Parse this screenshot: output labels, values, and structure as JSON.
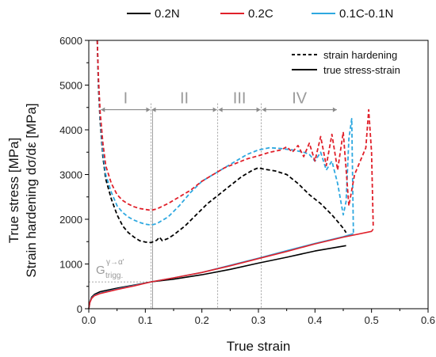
{
  "chart_data": {
    "type": "line",
    "xlabel": "True strain",
    "ylabel_lines": [
      "True stress [MPa]",
      "Strain hardening dσ/dε [MPa]"
    ],
    "xlim": [
      0.0,
      0.6
    ],
    "ylim": [
      0,
      6000
    ],
    "x_ticks": [
      0.0,
      0.1,
      0.2,
      0.3,
      0.4,
      0.5,
      0.6
    ],
    "y_ticks": [
      0,
      1000,
      2000,
      3000,
      4000,
      5000,
      6000
    ],
    "x_tick_labels": [
      "0.0",
      "0.1",
      "0.2",
      "0.3",
      "0.4",
      "0.5",
      "0.6"
    ],
    "y_tick_labels": [
      "0",
      "1000",
      "2000",
      "3000",
      "4000",
      "5000",
      "6000"
    ],
    "grid": false,
    "legend_top": {
      "placement": "top",
      "entries": [
        {
          "name": "0.2N",
          "color": "#000000"
        },
        {
          "name": "0.2C",
          "color": "#e0202a"
        },
        {
          "name": "0.1C-0.1N",
          "color": "#2ea8e0"
        }
      ]
    },
    "legend_style": {
      "placement": "top-right",
      "entries": [
        {
          "name": "strain hardening",
          "style": "dashed"
        },
        {
          "name": "true stress-strain",
          "style": "solid"
        }
      ]
    },
    "regions": {
      "labels": [
        "I",
        "II",
        "III",
        "IV"
      ],
      "boundaries": [
        0.02,
        0.11,
        0.228,
        0.305,
        0.44
      ],
      "arrow_y": 4450
    },
    "trigger": {
      "label": "G",
      "superscript": "γ→α'",
      "subscript": "trigg.",
      "stress": 600,
      "strain": 0.11
    },
    "series": [
      {
        "name": "0.2N",
        "kind": "true stress-strain",
        "color": "#000000",
        "dashed": false,
        "x": [
          0.0,
          0.002,
          0.005,
          0.01,
          0.02,
          0.05,
          0.08,
          0.11,
          0.15,
          0.2,
          0.25,
          0.3,
          0.35,
          0.4,
          0.45,
          0.455
        ],
        "y": [
          0,
          150,
          260,
          320,
          380,
          460,
          530,
          600,
          660,
          760,
          880,
          1020,
          1150,
          1290,
          1400,
          1410
        ]
      },
      {
        "name": "0.2C",
        "kind": "true stress-strain",
        "color": "#e0202a",
        "dashed": false,
        "x": [
          0.0,
          0.002,
          0.005,
          0.01,
          0.02,
          0.05,
          0.08,
          0.11,
          0.15,
          0.2,
          0.25,
          0.3,
          0.35,
          0.4,
          0.45,
          0.5,
          0.503
        ],
        "y": [
          0,
          140,
          230,
          290,
          340,
          430,
          510,
          600,
          690,
          810,
          960,
          1120,
          1280,
          1450,
          1600,
          1730,
          1780
        ]
      },
      {
        "name": "0.1C-0.1N",
        "kind": "true stress-strain",
        "color": "#2ea8e0",
        "dashed": false,
        "x": [
          0.0,
          0.002,
          0.005,
          0.01,
          0.02,
          0.05,
          0.08,
          0.11,
          0.15,
          0.2,
          0.25,
          0.3,
          0.35,
          0.4,
          0.45,
          0.468
        ],
        "y": [
          0,
          140,
          240,
          300,
          350,
          440,
          520,
          600,
          690,
          810,
          970,
          1130,
          1300,
          1460,
          1610,
          1680
        ]
      },
      {
        "name": "0.2N",
        "kind": "strain hardening",
        "color": "#000000",
        "dashed": true,
        "x": [
          0.015,
          0.017,
          0.02,
          0.025,
          0.03,
          0.04,
          0.05,
          0.06,
          0.07,
          0.08,
          0.09,
          0.1,
          0.11,
          0.12,
          0.125,
          0.13,
          0.14,
          0.15,
          0.17,
          0.19,
          0.21,
          0.23,
          0.25,
          0.27,
          0.29,
          0.3,
          0.31,
          0.33,
          0.35,
          0.37,
          0.39,
          0.41,
          0.43,
          0.44,
          0.45,
          0.455
        ],
        "y": [
          6000,
          5000,
          4200,
          3400,
          2900,
          2450,
          2100,
          1850,
          1700,
          1600,
          1520,
          1490,
          1480,
          1530,
          1600,
          1520,
          1570,
          1650,
          1850,
          2100,
          2350,
          2550,
          2750,
          2950,
          3100,
          3150,
          3120,
          3080,
          3000,
          2800,
          2550,
          2350,
          2100,
          1950,
          1800,
          1700
        ]
      },
      {
        "name": "0.2C",
        "kind": "strain hardening",
        "color": "#e0202a",
        "dashed": true,
        "x": [
          0.015,
          0.017,
          0.02,
          0.025,
          0.03,
          0.04,
          0.05,
          0.06,
          0.07,
          0.08,
          0.09,
          0.1,
          0.11,
          0.12,
          0.14,
          0.16,
          0.18,
          0.2,
          0.22,
          0.24,
          0.26,
          0.28,
          0.3,
          0.32,
          0.34,
          0.35,
          0.36,
          0.37,
          0.38,
          0.39,
          0.4,
          0.41,
          0.42,
          0.43,
          0.44,
          0.45,
          0.46,
          0.47,
          0.48,
          0.49,
          0.495,
          0.5,
          0.503
        ],
        "y": [
          6000,
          5200,
          4400,
          3700,
          3200,
          2800,
          2550,
          2420,
          2340,
          2280,
          2240,
          2220,
          2200,
          2230,
          2350,
          2500,
          2650,
          2850,
          3000,
          3150,
          3250,
          3350,
          3420,
          3500,
          3550,
          3620,
          3500,
          3650,
          3400,
          3700,
          3300,
          3850,
          3200,
          3900,
          3100,
          3950,
          2300,
          3000,
          3300,
          3600,
          4450,
          3500,
          1850
        ]
      },
      {
        "name": "0.1C-0.1N",
        "kind": "strain hardening",
        "color": "#2ea8e0",
        "dashed": true,
        "x": [
          0.015,
          0.017,
          0.02,
          0.025,
          0.03,
          0.04,
          0.05,
          0.06,
          0.07,
          0.08,
          0.09,
          0.1,
          0.11,
          0.12,
          0.14,
          0.16,
          0.18,
          0.2,
          0.22,
          0.24,
          0.26,
          0.28,
          0.3,
          0.32,
          0.34,
          0.36,
          0.38,
          0.39,
          0.4,
          0.41,
          0.42,
          0.43,
          0.44,
          0.45,
          0.455,
          0.46,
          0.465,
          0.468
        ],
        "y": [
          6000,
          5100,
          4300,
          3500,
          3000,
          2600,
          2300,
          2150,
          2050,
          1980,
          1930,
          1890,
          1870,
          1900,
          2050,
          2300,
          2600,
          2850,
          3000,
          3150,
          3300,
          3450,
          3550,
          3600,
          3580,
          3550,
          3500,
          3450,
          3300,
          3500,
          3100,
          3300,
          2800,
          2100,
          2400,
          3800,
          4250,
          1700
        ]
      }
    ]
  }
}
